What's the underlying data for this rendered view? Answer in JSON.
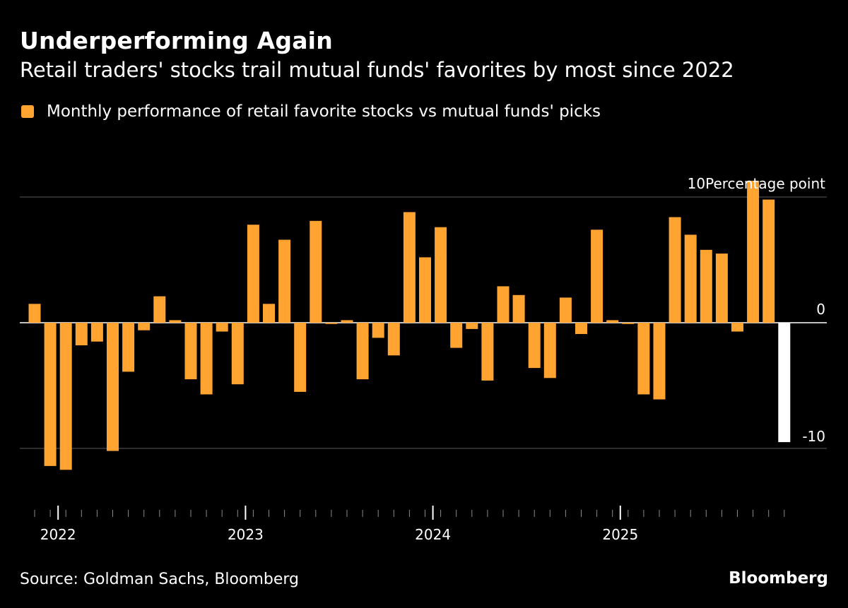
{
  "header": {
    "title": "Underperforming Again",
    "subtitle": "Retail traders' stocks trail mutual funds' favorites by most since 2022"
  },
  "footer": {
    "source": "Source: Goldman Sachs, Bloomberg",
    "brand": "Bloomberg"
  },
  "colors": {
    "background": "#000000",
    "bar": "#FFA331",
    "highlight_bar": "#FFFFFF",
    "grid": "#5a5a5a",
    "text": "#FFFFFF"
  },
  "chart_data": {
    "type": "bar",
    "title": "Underperforming Again",
    "subtitle": "Retail traders' stocks trail mutual funds' favorites by most since 2022",
    "legend": [
      "Monthly performance of retail favorite stocks vs mutual funds' picks"
    ],
    "legend_position": "top-left",
    "ylabel": "Percentage point",
    "y_ticks": [
      {
        "value": 10,
        "label": "10Percentage point"
      },
      {
        "value": 0,
        "label": "0"
      },
      {
        "value": -10,
        "label": "-10"
      }
    ],
    "ylim": [
      -16,
      11.5
    ],
    "x_start": "2021-11",
    "x_tick_labels": [
      {
        "label": "2022",
        "index": 2
      },
      {
        "label": "2023",
        "index": 14
      },
      {
        "label": "2024",
        "index": 26
      },
      {
        "label": "2025",
        "index": 38
      }
    ],
    "grid": true,
    "highlight_last": true,
    "values": [
      1.5,
      -11.4,
      -11.7,
      -1.8,
      -1.5,
      -10.2,
      -3.9,
      -0.6,
      2.1,
      0.2,
      -4.5,
      -5.7,
      -0.7,
      -4.9,
      7.8,
      1.5,
      6.6,
      -5.5,
      8.1,
      -0.1,
      0.2,
      -4.5,
      -1.2,
      -2.6,
      8.8,
      5.2,
      7.6,
      -2.0,
      -0.5,
      -4.6,
      2.9,
      2.2,
      -3.6,
      -4.4,
      2.0,
      -0.9,
      7.4,
      0.2,
      -0.1,
      -5.7,
      -6.1,
      8.4,
      7.0,
      5.8,
      5.5,
      -0.7,
      11.3,
      9.8,
      -9.5
    ]
  }
}
